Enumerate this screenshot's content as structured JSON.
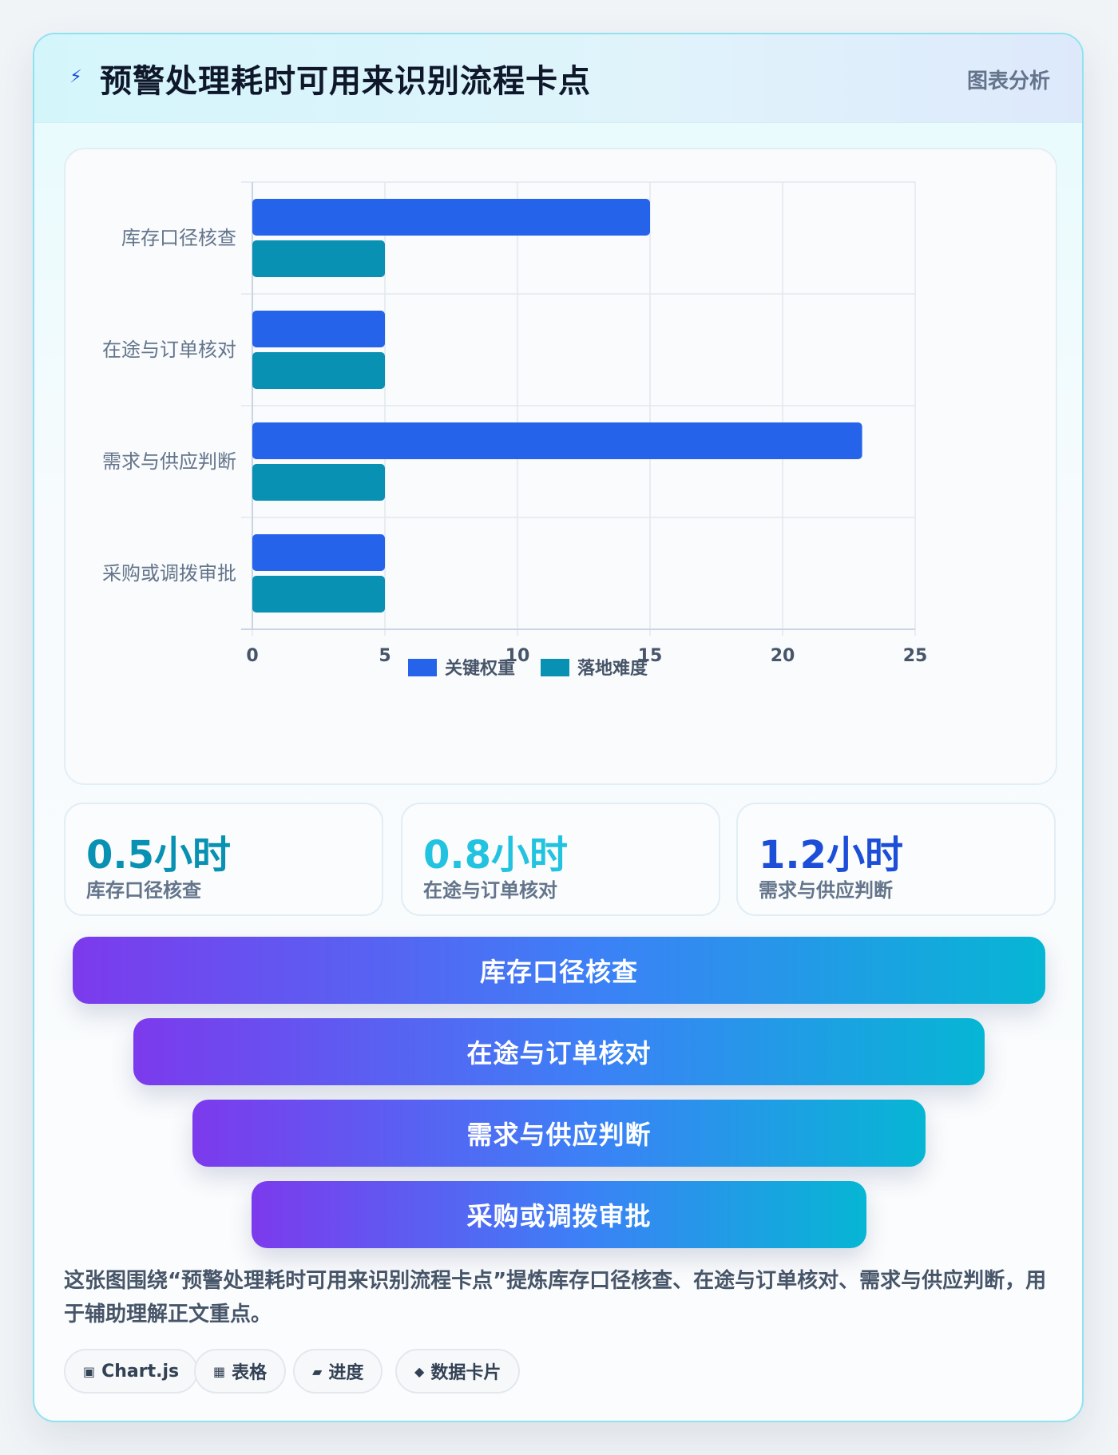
{
  "header": {
    "icon": "bolt-icon",
    "title": "预警处理耗时可用来识别流程卡点",
    "tag": "图表分析"
  },
  "chart_data": {
    "type": "bar",
    "orientation": "horizontal",
    "categories": [
      "库存口径核查",
      "在途与订单核对",
      "需求与供应判断",
      "采购或调拨审批"
    ],
    "series": [
      {
        "name": "关键权重",
        "values": [
          15,
          5,
          23,
          5
        ],
        "color": "#2563eb"
      },
      {
        "name": "落地难度",
        "values": [
          5,
          5,
          5,
          5
        ],
        "color": "#0891b2"
      }
    ],
    "xlim": [
      0,
      25
    ],
    "xticks": [
      0,
      5,
      10,
      15,
      20,
      25
    ],
    "grid": true,
    "legend_position": "bottom"
  },
  "stats": [
    {
      "value": "0.5小时",
      "label": "库存口径核查",
      "color": "#0891b2"
    },
    {
      "value": "0.8小时",
      "label": "在途与订单核对",
      "color": "#22c3e0"
    },
    {
      "value": "1.2小时",
      "label": "需求与供应判断",
      "color": "#1d4ed8"
    }
  ],
  "funnel": [
    "库存口径核查",
    "在途与订单核对",
    "需求与供应判断",
    "采购或调拨审批"
  ],
  "summary": "这张图围绕“预警处理耗时可用来识别流程卡点”提炼库存口径核查、在途与订单核对、需求与供应判断，用于辅助理解正文重点。",
  "chips": [
    {
      "icon": "▣",
      "label": "Chart.js"
    },
    {
      "icon": "▦",
      "label": "表格"
    },
    {
      "icon": "▰",
      "label": "进度"
    },
    {
      "icon": "◆",
      "label": "数据卡片"
    }
  ]
}
